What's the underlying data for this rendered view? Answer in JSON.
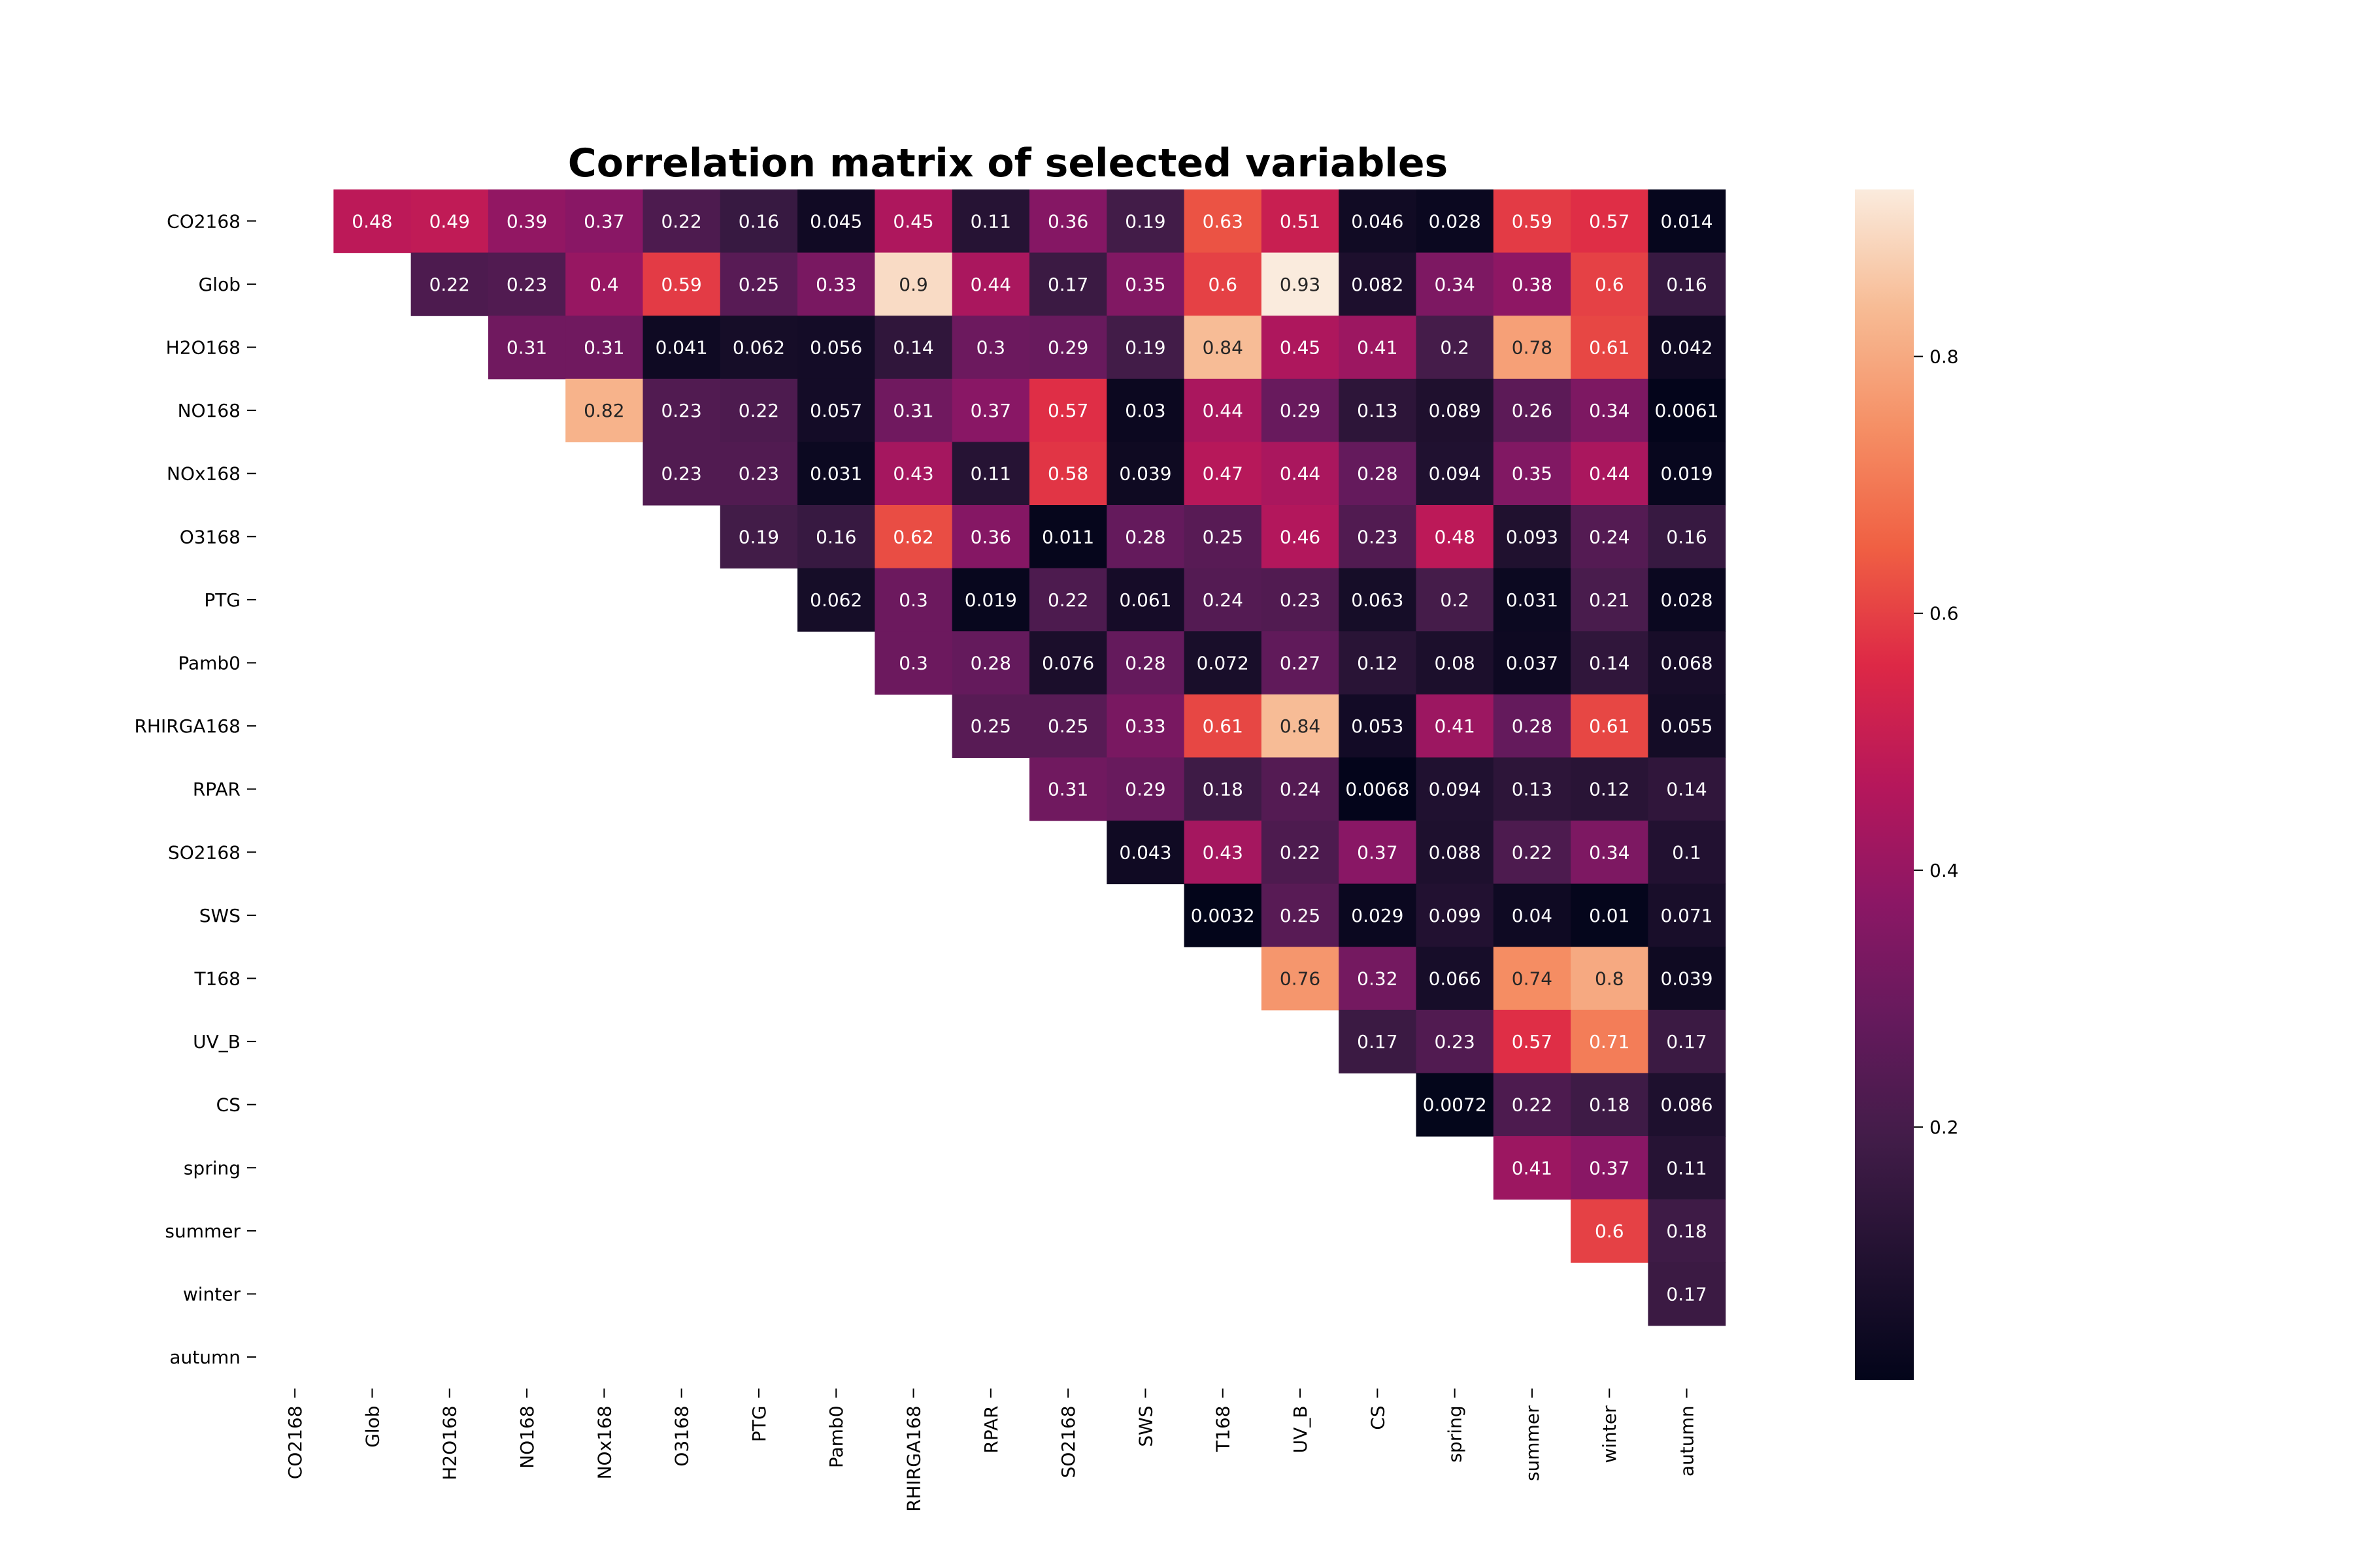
{
  "chart_data": {
    "type": "heatmap",
    "title": "Correlation matrix of selected variables",
    "variables": [
      "CO2168",
      "Glob",
      "H2O168",
      "NO168",
      "NOx168",
      "O3168",
      "PTG",
      "Pamb0",
      "RHIRGA168",
      "RPAR",
      "SO2168",
      "SWS",
      "T168",
      "UV_B",
      "CS",
      "spring",
      "summer",
      "winter",
      "autumn"
    ],
    "mask": "upper-triangle (cells where column index > row index are shown)",
    "values": [
      [
        0.48,
        0.49,
        0.39,
        0.37,
        0.22,
        0.16,
        0.045,
        0.45,
        0.11,
        0.36,
        0.19,
        0.63,
        0.51,
        0.046,
        0.028,
        0.59,
        0.57,
        0.014
      ],
      [
        0.22,
        0.23,
        0.4,
        0.59,
        0.25,
        0.33,
        0.9,
        0.44,
        0.17,
        0.35,
        0.6,
        0.93,
        0.082,
        0.34,
        0.38,
        0.6,
        0.16
      ],
      [
        0.31,
        0.31,
        0.041,
        0.062,
        0.056,
        0.14,
        0.3,
        0.29,
        0.19,
        0.84,
        0.45,
        0.41,
        0.2,
        0.78,
        0.61,
        0.042
      ],
      [
        0.82,
        0.23,
        0.22,
        0.057,
        0.31,
        0.37,
        0.57,
        0.03,
        0.44,
        0.29,
        0.13,
        0.089,
        0.26,
        0.34,
        0.0061
      ],
      [
        0.23,
        0.23,
        0.031,
        0.43,
        0.11,
        0.58,
        0.039,
        0.47,
        0.44,
        0.28,
        0.094,
        0.35,
        0.44,
        0.019
      ],
      [
        0.19,
        0.16,
        0.62,
        0.36,
        0.011,
        0.28,
        0.25,
        0.46,
        0.23,
        0.48,
        0.093,
        0.24,
        0.16
      ],
      [
        0.062,
        0.3,
        0.019,
        0.22,
        0.061,
        0.24,
        0.23,
        0.063,
        0.2,
        0.031,
        0.21,
        0.028
      ],
      [
        0.3,
        0.28,
        0.076,
        0.28,
        0.072,
        0.27,
        0.12,
        0.08,
        0.037,
        0.14,
        0.068
      ],
      [
        0.25,
        0.25,
        0.33,
        0.61,
        0.84,
        0.053,
        0.41,
        0.28,
        0.61,
        0.055
      ],
      [
        0.31,
        0.29,
        0.18,
        0.24,
        0.0068,
        0.094,
        0.13,
        0.12,
        0.14
      ],
      [
        0.043,
        0.43,
        0.22,
        0.37,
        0.088,
        0.22,
        0.34,
        0.1
      ],
      [
        0.0032,
        0.25,
        0.029,
        0.099,
        0.04,
        0.01,
        0.071
      ],
      [
        0.76,
        0.32,
        0.066,
        0.74,
        0.8,
        0.039
      ],
      [
        0.17,
        0.23,
        0.57,
        0.71,
        0.17
      ],
      [
        0.0072,
        0.22,
        0.18,
        0.086
      ],
      [
        0.41,
        0.37,
        0.11
      ],
      [
        0.6,
        0.18
      ],
      [
        0.17
      ],
      []
    ],
    "colorbar": {
      "colormap": "rocket",
      "range": [
        0.0032,
        0.93
      ],
      "ticks": [
        0.2,
        0.4,
        0.6,
        0.8
      ],
      "tick_labels": [
        "0.2",
        "0.4",
        "0.6",
        "0.8"
      ]
    },
    "grid": false
  }
}
